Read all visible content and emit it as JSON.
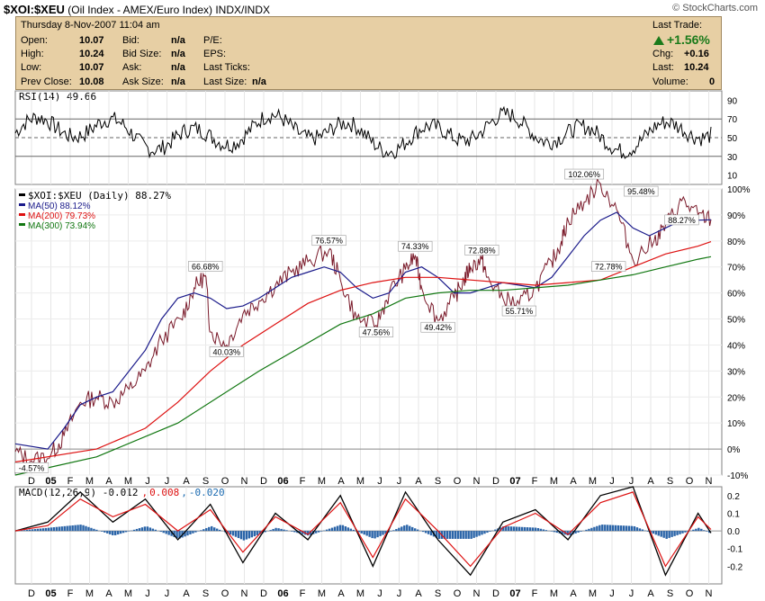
{
  "title": {
    "symbol": "$XOI:$XEU",
    "desc": "(Oil Index - AMEX/Euro Index)",
    "exchange": "INDX/INDX"
  },
  "copyright": "© StockCharts.com",
  "quote": {
    "date": "Thursday  8-Nov-2007  11:04 am",
    "open_label": "Open:",
    "open": "10.07",
    "high_label": "High:",
    "high": "10.24",
    "low_label": "Low:",
    "low": "10.07",
    "prev_label": "Prev Close:",
    "prev": "10.08",
    "bid_label": "Bid:",
    "bid": "n/a",
    "bidsize_label": "Bid Size:",
    "bidsize": "n/a",
    "ask_label": "Ask:",
    "ask": "n/a",
    "asksize_label": "Ask Size:",
    "asksize": "n/a",
    "pe_label": "P/E:",
    "eps_label": "EPS:",
    "lastticks_label": "Last Ticks:",
    "lastsize_label": "Last Size:",
    "lastsize": "n/a",
    "lasttrade_label": "Last Trade:",
    "pct": "+1.56%",
    "chg_label": "Chg:",
    "chg": "+0.16",
    "last_label": "Last:",
    "last": "10.24",
    "volume_label": "Volume:",
    "volume": "0"
  },
  "chart_data": [
    {
      "type": "line",
      "legend": "RSI(14) 49.66",
      "ylim": [
        0,
        100
      ],
      "yticks": [
        10,
        30,
        50,
        70,
        90
      ],
      "reference_lines": [
        30,
        50,
        70
      ],
      "series": [
        {
          "name": "RSI(14)",
          "color": "#000000"
        }
      ]
    },
    {
      "type": "line",
      "legend_series": [
        "$XOI:$XEU (Daily) 88.27%",
        "MA(50) 88.12%",
        "MA(200) 79.73%",
        "MA(300) 73.94%"
      ],
      "ylim": [
        -10,
        100
      ],
      "yticks": [
        "-10%",
        "0%",
        "10%",
        "20%",
        "30%",
        "40%",
        "50%",
        "60%",
        "70%",
        "80%",
        "90%",
        "100%"
      ],
      "zero_line": 0,
      "series": [
        {
          "name": "$XOI:$XEU (Daily)",
          "color": "#7a1a2a",
          "x": [
            0,
            1,
            2.2,
            3,
            4,
            5,
            6,
            7,
            8,
            9,
            10.2,
            11,
            11.7,
            12,
            13,
            14,
            15,
            16,
            17,
            18,
            19.3,
            20,
            21,
            22.2,
            23,
            24,
            24.6,
            25,
            26,
            27,
            27.6,
            28,
            28.7,
            29,
            30,
            31,
            32,
            33,
            33.6,
            34,
            35,
            36,
            37,
            38,
            39.3,
            40,
            41,
            42,
            42.8
          ],
          "values": [
            -1,
            -4.57,
            -2,
            5,
            18,
            20,
            18,
            23,
            30,
            42,
            50,
            62,
            66.68,
            45,
            40.03,
            52,
            57,
            63,
            68,
            72,
            76.57,
            65,
            50,
            47.56,
            60,
            69,
            74.33,
            62,
            49.42,
            58,
            65,
            70,
            72.88,
            66,
            58,
            55.71,
            62,
            72,
            80,
            88,
            95,
            102.06,
            92,
            72.78,
            80,
            86,
            95.48,
            90,
            88.27
          ]
        },
        {
          "name": "MA(50)",
          "color": "#1a1a8a",
          "x": [
            0,
            2,
            3,
            4,
            5,
            6,
            7,
            8,
            9,
            10,
            11,
            12,
            13,
            14,
            15,
            16,
            17,
            18,
            19,
            20,
            21,
            22,
            23,
            24,
            25,
            26,
            27,
            28,
            29,
            30,
            31,
            32,
            33,
            34,
            35,
            36,
            37,
            38,
            39,
            40,
            41,
            42,
            42.8
          ],
          "values": [
            2,
            0,
            8,
            17,
            20,
            22,
            30,
            38,
            50,
            58,
            60,
            58,
            54,
            55,
            58,
            62,
            66,
            68,
            70,
            68,
            62,
            58,
            60,
            68,
            70,
            66,
            60,
            60,
            62,
            64,
            63,
            62,
            66,
            74,
            82,
            88,
            91,
            85,
            82,
            85,
            88,
            88,
            88.12
          ]
        },
        {
          "name": "MA(200)",
          "color": "#dd1111",
          "x": [
            0,
            5,
            8,
            10,
            12,
            14,
            16,
            18,
            20,
            22,
            24,
            26,
            28,
            30,
            32,
            34,
            36,
            38,
            40,
            42,
            42.8
          ],
          "values": [
            -5,
            0,
            8,
            18,
            30,
            40,
            48,
            56,
            61,
            64,
            66,
            66,
            65,
            64,
            63,
            64,
            65,
            70,
            75,
            78,
            79.73
          ]
        },
        {
          "name": "MA(300)",
          "color": "#117711",
          "x": [
            0,
            5,
            10,
            15,
            20,
            22,
            24,
            26,
            28,
            30,
            32,
            34,
            36,
            38,
            40,
            42,
            42.8
          ],
          "values": [
            -10,
            -3,
            10,
            30,
            48,
            52,
            58,
            60,
            61,
            61,
            62,
            63,
            65,
            67,
            70,
            73,
            73.94
          ]
        }
      ],
      "annotations": [
        "-4.57%",
        "66.68%",
        "40.03%",
        "76.57%",
        "47.56%",
        "74.33%",
        "49.42%",
        "72.88%",
        "55.71%",
        "102.06%",
        "95.48%",
        "72.78%",
        "88.27%"
      ]
    },
    {
      "type": "line",
      "legend": {
        "main": "MACD(12,26,9) -0.012",
        "signal": "0.008",
        "hist": "-0.020"
      },
      "ylim": [
        -0.3,
        0.25
      ],
      "yticks": [
        "-0.2",
        "-0.1",
        "0.0",
        "0.1",
        "0.2"
      ],
      "series": [
        {
          "name": "MACD",
          "color": "#000000",
          "x": [
            0,
            2,
            4,
            6,
            8,
            10,
            12,
            14,
            16,
            18,
            20,
            22,
            24,
            26,
            28,
            30,
            32,
            34,
            36,
            38,
            40,
            42,
            42.8
          ],
          "values": [
            0,
            0.05,
            0.22,
            0.05,
            0.18,
            -0.05,
            0.15,
            -0.18,
            0.1,
            -0.05,
            0.2,
            -0.2,
            0.22,
            -0.05,
            -0.25,
            0.05,
            0.12,
            -0.05,
            0.2,
            0.25,
            -0.25,
            0.1,
            -0.012
          ]
        },
        {
          "name": "Signal",
          "color": "#dd1111",
          "x": [
            0,
            2,
            4,
            6,
            8,
            10,
            12,
            14,
            16,
            18,
            20,
            22,
            24,
            26,
            28,
            30,
            32,
            34,
            36,
            38,
            40,
            42,
            42.8
          ],
          "values": [
            0,
            0.03,
            0.18,
            0.08,
            0.15,
            0,
            0.12,
            -0.12,
            0.08,
            -0.02,
            0.16,
            -0.15,
            0.18,
            0,
            -0.2,
            0.02,
            0.1,
            -0.02,
            0.16,
            0.22,
            -0.2,
            0.08,
            0.008
          ]
        }
      ]
    }
  ],
  "x_axis_labels": [
    "D",
    "05",
    "F",
    "M",
    "A",
    "M",
    "J",
    "J",
    "A",
    "S",
    "O",
    "N",
    "D",
    "06",
    "F",
    "M",
    "A",
    "M",
    "J",
    "J",
    "A",
    "S",
    "O",
    "N",
    "D",
    "07",
    "F",
    "M",
    "A",
    "M",
    "J",
    "J",
    "A",
    "S",
    "O",
    "N"
  ]
}
